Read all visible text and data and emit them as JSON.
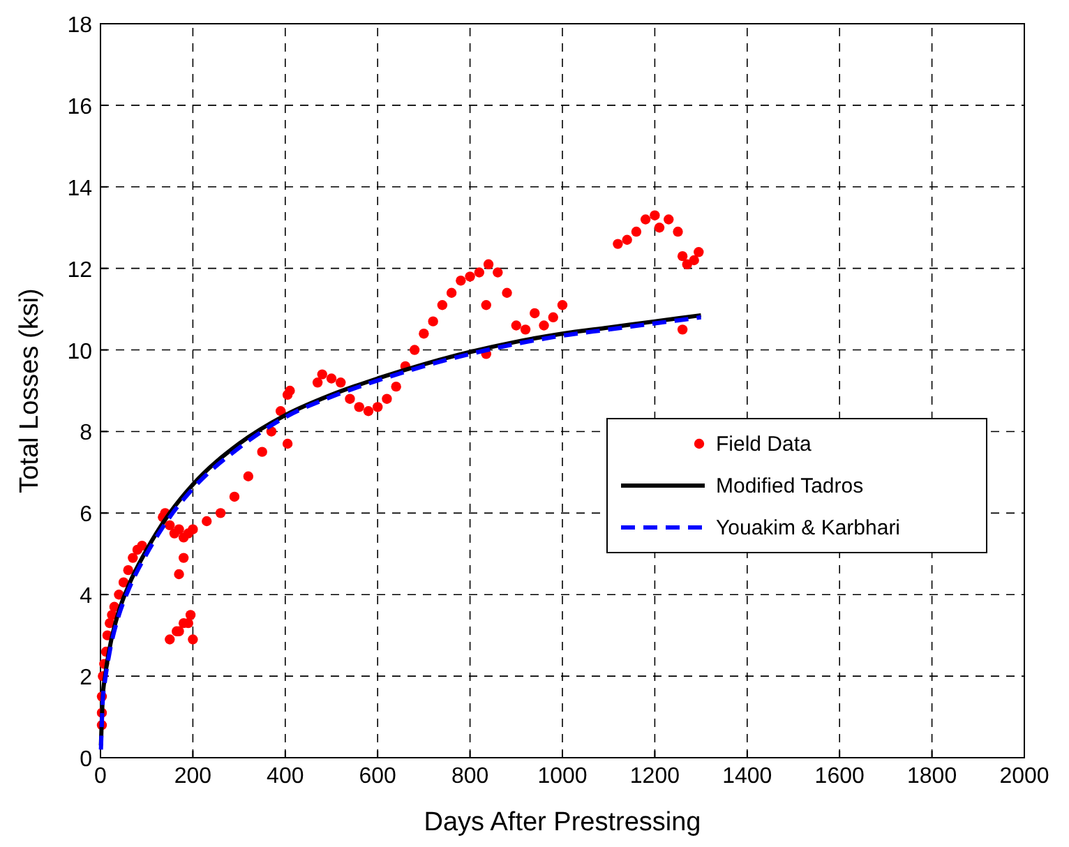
{
  "chart_data": {
    "type": "scatter",
    "xlabel": "Days After Prestressing",
    "ylabel": "Total Losses (ksi)",
    "xlim": [
      0,
      2000
    ],
    "xticks": [
      0,
      200,
      400,
      600,
      800,
      1000,
      1200,
      1400,
      1600,
      1800,
      2000
    ],
    "ylim": [
      0,
      18
    ],
    "yticks": [
      0,
      2,
      4,
      6,
      8,
      10,
      12,
      14,
      16,
      18
    ],
    "grid": true,
    "legend": "right",
    "series": [
      {
        "name": "Field Data",
        "marker": "circle",
        "color": "#ff0000",
        "x": [
          3,
          3,
          3,
          5,
          8,
          12,
          15,
          20,
          25,
          30,
          40,
          50,
          60,
          70,
          80,
          90,
          135,
          140,
          150,
          160,
          170,
          180,
          190,
          200,
          150,
          165,
          170,
          180,
          190,
          195,
          200,
          170,
          180,
          230,
          260,
          290,
          320,
          350,
          370,
          390,
          405,
          410,
          405,
          470,
          480,
          500,
          520,
          540,
          560,
          580,
          600,
          620,
          640,
          660,
          680,
          700,
          720,
          740,
          760,
          780,
          800,
          820,
          840,
          860,
          880,
          900,
          920,
          940,
          960,
          980,
          1000,
          835,
          835,
          1120,
          1140,
          1160,
          1180,
          1200,
          1210,
          1230,
          1250,
          1260,
          1270,
          1285,
          1295,
          1260
        ],
        "values": [
          0.8,
          1.1,
          1.5,
          2.0,
          2.3,
          2.6,
          3.0,
          3.3,
          3.5,
          3.7,
          4.0,
          4.3,
          4.6,
          4.9,
          5.1,
          5.2,
          5.9,
          6.0,
          5.7,
          5.5,
          5.6,
          5.4,
          5.5,
          5.6,
          2.9,
          3.1,
          3.1,
          3.3,
          3.3,
          3.5,
          2.9,
          4.5,
          4.9,
          5.8,
          6.0,
          6.4,
          6.9,
          7.5,
          8.0,
          8.5,
          8.9,
          9.0,
          7.7,
          9.2,
          9.4,
          9.3,
          9.2,
          8.8,
          8.6,
          8.5,
          8.6,
          8.8,
          9.1,
          9.6,
          10.0,
          10.4,
          10.7,
          11.1,
          11.4,
          11.7,
          11.8,
          11.9,
          12.1,
          11.9,
          11.4,
          10.6,
          10.5,
          10.9,
          10.6,
          10.8,
          11.1,
          11.1,
          9.9,
          12.6,
          12.7,
          12.9,
          13.2,
          13.3,
          13.0,
          13.2,
          12.9,
          12.3,
          12.1,
          12.2,
          12.4,
          10.5
        ]
      },
      {
        "name": "Modified Tadros",
        "type": "line",
        "line_style": "solid",
        "color": "#000000",
        "x": [
          1,
          5,
          10,
          20,
          40,
          60,
          100,
          150,
          200,
          300,
          400,
          500,
          600,
          700,
          800,
          900,
          1000,
          1100,
          1200,
          1300
        ],
        "values": [
          0.3,
          1.5,
          2.0,
          2.7,
          3.6,
          4.2,
          5.1,
          6.0,
          6.7,
          7.7,
          8.4,
          8.9,
          9.3,
          9.65,
          9.95,
          10.2,
          10.4,
          10.55,
          10.7,
          10.85
        ]
      },
      {
        "name": "Youakim & Karbhari",
        "type": "line",
        "line_style": "dashed",
        "color": "#0000ff",
        "x": [
          1,
          5,
          10,
          20,
          40,
          60,
          100,
          150,
          200,
          300,
          400,
          500,
          600,
          700,
          800,
          900,
          1000,
          1100,
          1200,
          1300
        ],
        "values": [
          0.2,
          1.4,
          1.9,
          2.6,
          3.5,
          4.1,
          5.0,
          5.9,
          6.6,
          7.6,
          8.35,
          8.85,
          9.25,
          9.6,
          9.9,
          10.15,
          10.35,
          10.5,
          10.65,
          10.8
        ]
      }
    ]
  }
}
